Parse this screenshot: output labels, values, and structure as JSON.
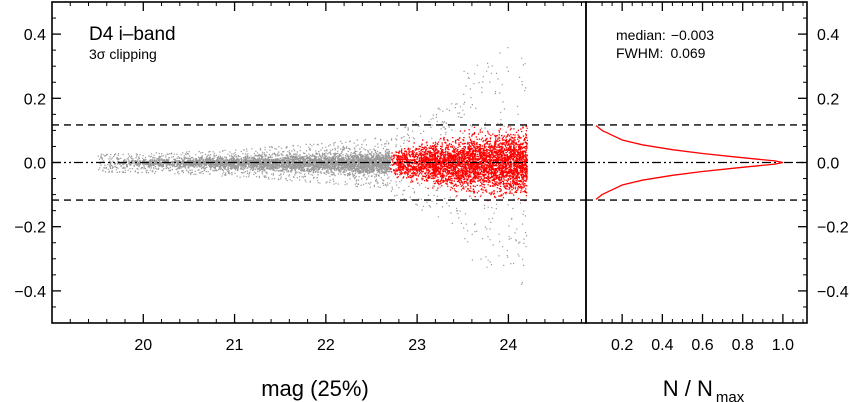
{
  "chart_data": [
    {
      "type": "scatter",
      "title": "D4 i–band",
      "subtitle_prefix": "3",
      "subtitle_sigma": "σ",
      "subtitle_suffix": " clipping",
      "xlabel": "mag (25%)",
      "xlim": [
        19.0,
        24.85
      ],
      "ylim": [
        -0.5,
        0.5
      ],
      "x_ticks": [
        20,
        21,
        22,
        23,
        24
      ],
      "x_tick_labels": [
        "20",
        "21",
        "22",
        "23",
        "24"
      ],
      "y_ticks": [
        -0.4,
        -0.2,
        0.0,
        0.2,
        0.4
      ],
      "y_tick_labels": [
        "−0.4",
        "−0.2",
        "0.0",
        "0.2",
        "0.4"
      ],
      "reference_lines": {
        "zero": 0.0,
        "clip_upper": 0.117,
        "clip_lower": -0.117
      },
      "series": [
        {
          "color": "#999999",
          "x_range": [
            19.5,
            22.7
          ],
          "mag": [
            19.5,
            20.0,
            20.5,
            21.0,
            21.5,
            22.0,
            22.5,
            22.7
          ],
          "scatter_half_width": [
            0.012,
            0.013,
            0.015,
            0.018,
            0.022,
            0.027,
            0.033,
            0.036
          ]
        },
        {
          "color": "#ff0000",
          "x_range": [
            22.7,
            24.2
          ],
          "mag": [
            22.7,
            23.0,
            23.5,
            24.0,
            24.2
          ],
          "scatter_half_width": [
            0.04,
            0.06,
            0.085,
            0.11,
            0.117
          ]
        },
        {
          "color": "#999999",
          "x_range": [
            22.7,
            24.2
          ],
          "note_outliers": [
            0.47,
            -0.42
          ]
        }
      ]
    },
    {
      "type": "line",
      "annotation_median_label": "median:",
      "annotation_median_value": "−0.003",
      "annotation_fwhm_label": "FWHM:",
      "annotation_fwhm_value": "0.069",
      "xlabel_main": "N / N",
      "xlabel_sub": "max",
      "xlim": [
        0.02,
        1.12
      ],
      "ylim": [
        -0.5,
        0.5
      ],
      "x_ticks": [
        0.2,
        0.4,
        0.6,
        0.8,
        1.0
      ],
      "x_tick_labels": [
        "0.2",
        "0.4",
        "0.6",
        "0.8",
        "1.0"
      ],
      "y_ticks": [
        -0.4,
        -0.2,
        0.0,
        0.2,
        0.4
      ],
      "y_tick_labels": [
        "−0.4",
        "−0.2",
        "0.0",
        "0.2",
        "0.4"
      ],
      "series": [
        {
          "color": "#ff0000",
          "x": [
            0.07,
            0.1,
            0.15,
            0.2,
            0.3,
            0.45,
            0.6,
            0.75,
            0.88,
            0.96,
            1.0,
            0.96,
            0.88,
            0.75,
            0.6,
            0.45,
            0.3,
            0.2,
            0.15,
            0.1,
            0.07
          ],
          "y": [
            0.115,
            0.1,
            0.085,
            0.07,
            0.055,
            0.04,
            0.028,
            0.018,
            0.01,
            0.005,
            0.0,
            -0.005,
            -0.01,
            -0.018,
            -0.028,
            -0.04,
            -0.055,
            -0.07,
            -0.085,
            -0.1,
            -0.115
          ]
        }
      ]
    }
  ]
}
